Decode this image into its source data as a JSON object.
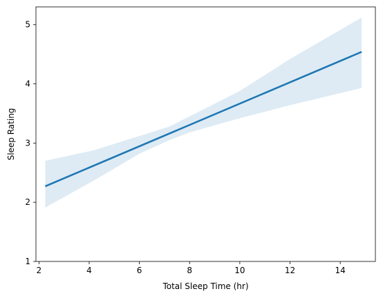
{
  "chart_data": {
    "type": "line",
    "title": "",
    "xlabel": "Total Sleep Time (hr)",
    "ylabel": "Sleep Rating",
    "xlim": [
      1.88,
      15.4
    ],
    "ylim": [
      1,
      5.3
    ],
    "xticks": [
      2,
      4,
      6,
      8,
      10,
      12,
      14
    ],
    "yticks": [
      1,
      2,
      3,
      4,
      5
    ],
    "xtick_labels": [
      "2",
      "4",
      "6",
      "8",
      "10",
      "12",
      "14"
    ],
    "ytick_labels": [
      "1",
      "2",
      "3",
      "4",
      "5"
    ],
    "grid": false,
    "legend": "none",
    "series": [
      {
        "kind": "regression-line",
        "color": "#1f77b4",
        "x": [
          2.25,
          14.85
        ],
        "y": [
          2.27,
          4.54
        ]
      },
      {
        "kind": "confidence-band",
        "color": "#1f77b4",
        "opacity": 0.15,
        "x": [
          2.25,
          4.2,
          6.0,
          7.2,
          8.0,
          10.0,
          12.0,
          14.85
        ],
        "upper": [
          2.7,
          2.88,
          3.12,
          3.28,
          3.45,
          3.88,
          4.42,
          5.12
        ],
        "lower": [
          1.91,
          2.37,
          2.82,
          3.05,
          3.18,
          3.42,
          3.64,
          3.93
        ]
      }
    ]
  }
}
